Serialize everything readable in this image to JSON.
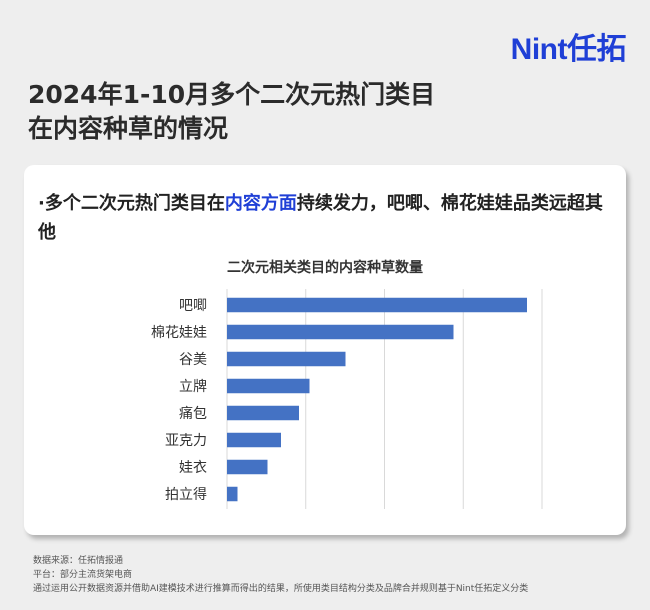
{
  "brand": {
    "logo_text": "Nint任拓",
    "accent": "#1f3fd6"
  },
  "headline": {
    "line1": "2024年1-10月多个二次元热门类目",
    "line2": "在内容种草的情况"
  },
  "subhead": {
    "prefix": "·多个二次元热门类目在",
    "highlight": "内容方面",
    "suffix": "持续发力，吧唧、棉花娃娃品类远超其他"
  },
  "chart_data": {
    "type": "bar",
    "orientation": "horizontal",
    "title": "二次元相关类目的内容种草数量",
    "categories": [
      "吧唧",
      "棉花娃娃",
      "谷美",
      "立牌",
      "痛包",
      "亚克力",
      "娃衣",
      "拍立得"
    ],
    "values": [
      100,
      75.5,
      39.5,
      27.5,
      24,
      18,
      13.5,
      3.5
    ],
    "xlim": [
      0,
      105
    ],
    "bar_color": "#4472c4",
    "grid": true,
    "xaxis_labels_visible": false
  },
  "footer": {
    "source": "数据来源：任拓情报通",
    "platform": "平台：部分主流货架电商",
    "note": "通过运用公开数据资源并借助AI建模技术进行推算而得出的结果，所使用类目结构分类及品牌合并规则基于Nint任拓定义分类"
  }
}
